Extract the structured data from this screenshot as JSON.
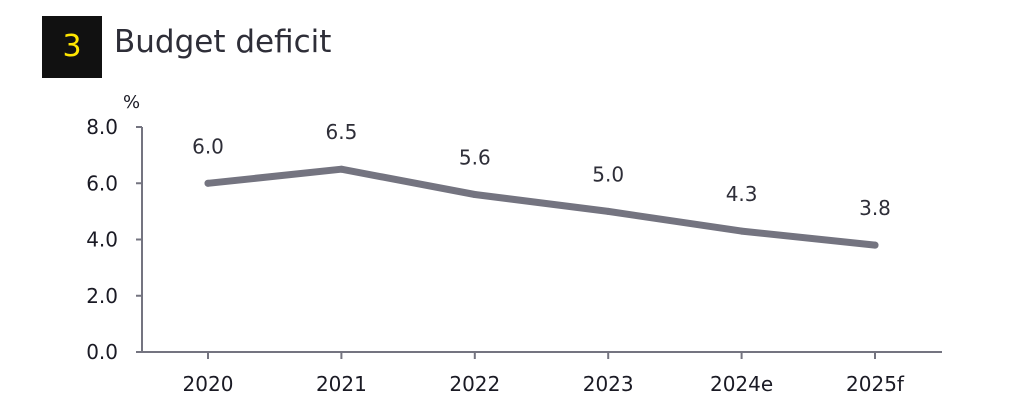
{
  "header": {
    "badge_number": "3",
    "title": "Budget deficit"
  },
  "colors": {
    "badge_background": "#111111",
    "badge_text": "#ffe600",
    "line": "#747480",
    "axis": "#747480"
  },
  "chart_data": {
    "type": "line",
    "title": "Budget deficit",
    "ylabel": "%",
    "xlabel": "",
    "categories": [
      "2020",
      "2021",
      "2022",
      "2023",
      "2024e",
      "2025f"
    ],
    "series": [
      {
        "values": [
          6.0,
          6.5,
          5.6,
          5.0,
          4.3,
          3.8
        ],
        "data_labels": [
          "6.0",
          "6.5",
          "5.6",
          "5.0",
          "4.3",
          "3.8"
        ]
      }
    ],
    "ylim": [
      0,
      8
    ],
    "yticks": [
      "0.0",
      "2.0",
      "4.0",
      "6.0",
      "8.0"
    ],
    "ytick_values": [
      0,
      2,
      4,
      6,
      8
    ],
    "grid": false,
    "legend": "none"
  }
}
